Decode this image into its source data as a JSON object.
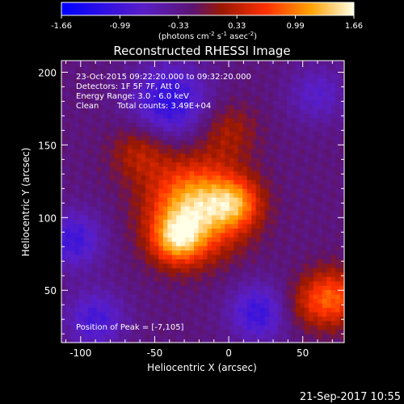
{
  "chart_data": {
    "type": "heatmap",
    "title": "Reconstructed RHESSI Image",
    "xlabel": "Heliocentric X (arcsec)",
    "ylabel": "Heliocentric Y (arcsec)",
    "xlim": [
      -113,
      78
    ],
    "ylim": [
      14,
      208
    ],
    "x_ticks": [
      -100,
      -50,
      0,
      50
    ],
    "y_ticks": [
      50,
      100,
      150,
      200
    ],
    "colorbar": {
      "min": -1.66,
      "max": 1.66,
      "ticks": [
        "-1.66",
        "-0.99",
        "-0.33",
        "0.33",
        "0.99",
        "1.66"
      ],
      "unit_label": "(photons cm",
      "unit_sup1": "-2",
      "unit_mid1": " s",
      "unit_sup2": "-1",
      "unit_mid2": " asec",
      "unit_sup3": "-2",
      "unit_end": ")"
    },
    "sources": [
      {
        "x": -22,
        "y": 107,
        "amplitude": 1.66,
        "sigma": 22
      },
      {
        "x": -35,
        "y": 85,
        "amplitude": 1.1,
        "sigma": 12
      },
      {
        "x": 5,
        "y": 110,
        "amplitude": 0.9,
        "sigma": 12
      },
      {
        "x": 70,
        "y": 45,
        "amplitude": 1.05,
        "sigma": 14
      },
      {
        "x": -60,
        "y": 145,
        "amplitude": 0.55,
        "sigma": 14
      },
      {
        "x": 0,
        "y": 160,
        "amplitude": 0.45,
        "sigma": 14
      },
      {
        "x": 50,
        "y": 40,
        "amplitude": 0.3,
        "sigma": 12
      },
      {
        "x": -40,
        "y": 180,
        "amplitude": -0.9,
        "sigma": 18
      },
      {
        "x": -105,
        "y": 85,
        "amplitude": -0.75,
        "sigma": 14
      },
      {
        "x": 20,
        "y": 35,
        "amplitude": -0.8,
        "sigma": 14
      },
      {
        "x": -90,
        "y": 30,
        "amplitude": -0.7,
        "sigma": 14
      },
      {
        "x": 60,
        "y": 185,
        "amplitude": -0.5,
        "sigma": 14
      }
    ],
    "background": -0.25,
    "annotations": {
      "time": "23-Oct-2015 09:22:20.000 to 09:32:20.000",
      "detectors": "Detectors: 1F 5F 7F, Att 0",
      "energy": "Energy Range: 3.0 - 6.0 keV",
      "method": "Clean",
      "counts": "Total counts: 3.49E+04",
      "peak": "Position of Peak = [-7,105]"
    },
    "footer_date": "21-Sep-2017 10:55"
  }
}
